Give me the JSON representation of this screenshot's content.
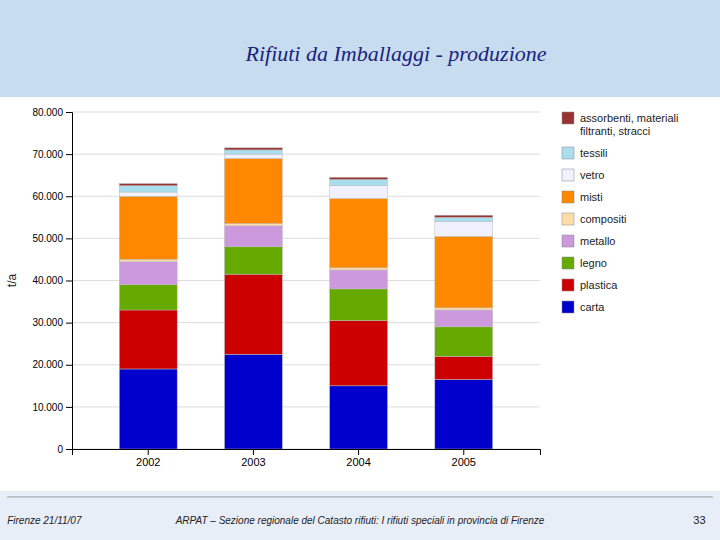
{
  "chart_data": {
    "type": "bar",
    "stacked": true,
    "title": "Rifiuti da Imballaggi - produzione",
    "ylabel": "t/a",
    "categories": [
      "2002",
      "2003",
      "2004",
      "2005"
    ],
    "series": [
      {
        "name": "carta",
        "color": "#0000CC",
        "values": [
          19000,
          22500,
          15000,
          16500
        ]
      },
      {
        "name": "plastica",
        "color": "#CC0000",
        "values": [
          14000,
          19000,
          15500,
          5500
        ]
      },
      {
        "name": "legno",
        "color": "#66AA00",
        "values": [
          6000,
          6500,
          7500,
          7000
        ]
      },
      {
        "name": "metallo",
        "color": "#CC99DD",
        "values": [
          5500,
          5000,
          4500,
          4000
        ]
      },
      {
        "name": "compositi",
        "color": "#FFDDAA",
        "values": [
          500,
          500,
          500,
          500
        ]
      },
      {
        "name": "misti",
        "color": "#FF8800",
        "values": [
          15000,
          15500,
          16500,
          17000
        ]
      },
      {
        "name": "vetro",
        "color": "#F0F0FF",
        "values": [
          1000,
          1000,
          3000,
          3500
        ]
      },
      {
        "name": "tessili",
        "color": "#AADDEE",
        "values": [
          1500,
          1000,
          1500,
          1000
        ]
      },
      {
        "name": "assorbenti, materiali\nfiltranti, stracci",
        "color": "#993333",
        "values": [
          500,
          500,
          500,
          500
        ]
      }
    ],
    "ylim": [
      0,
      80000
    ],
    "yticks": [
      0,
      {
        "value": 10000,
        "label": "10.000"
      },
      {
        "value": 20000,
        "label": "20.000"
      },
      {
        "value": 30000,
        "label": "30.000"
      },
      {
        "value": 40000,
        "label": "40.000"
      },
      {
        "value": 50000,
        "label": "50.000"
      },
      {
        "value": 60000,
        "label": "60.000"
      },
      {
        "value": 70000,
        "label": "70.000"
      },
      {
        "value": 80000,
        "label": "80.000"
      }
    ],
    "grid": true,
    "legend": "right",
    "annotations": [
      "Firenze 21/11/07",
      "ARPAT – Sezione regionale del Catasto rifiuti: I rifiuti speciali in provincia di Firenze",
      "33"
    ]
  }
}
